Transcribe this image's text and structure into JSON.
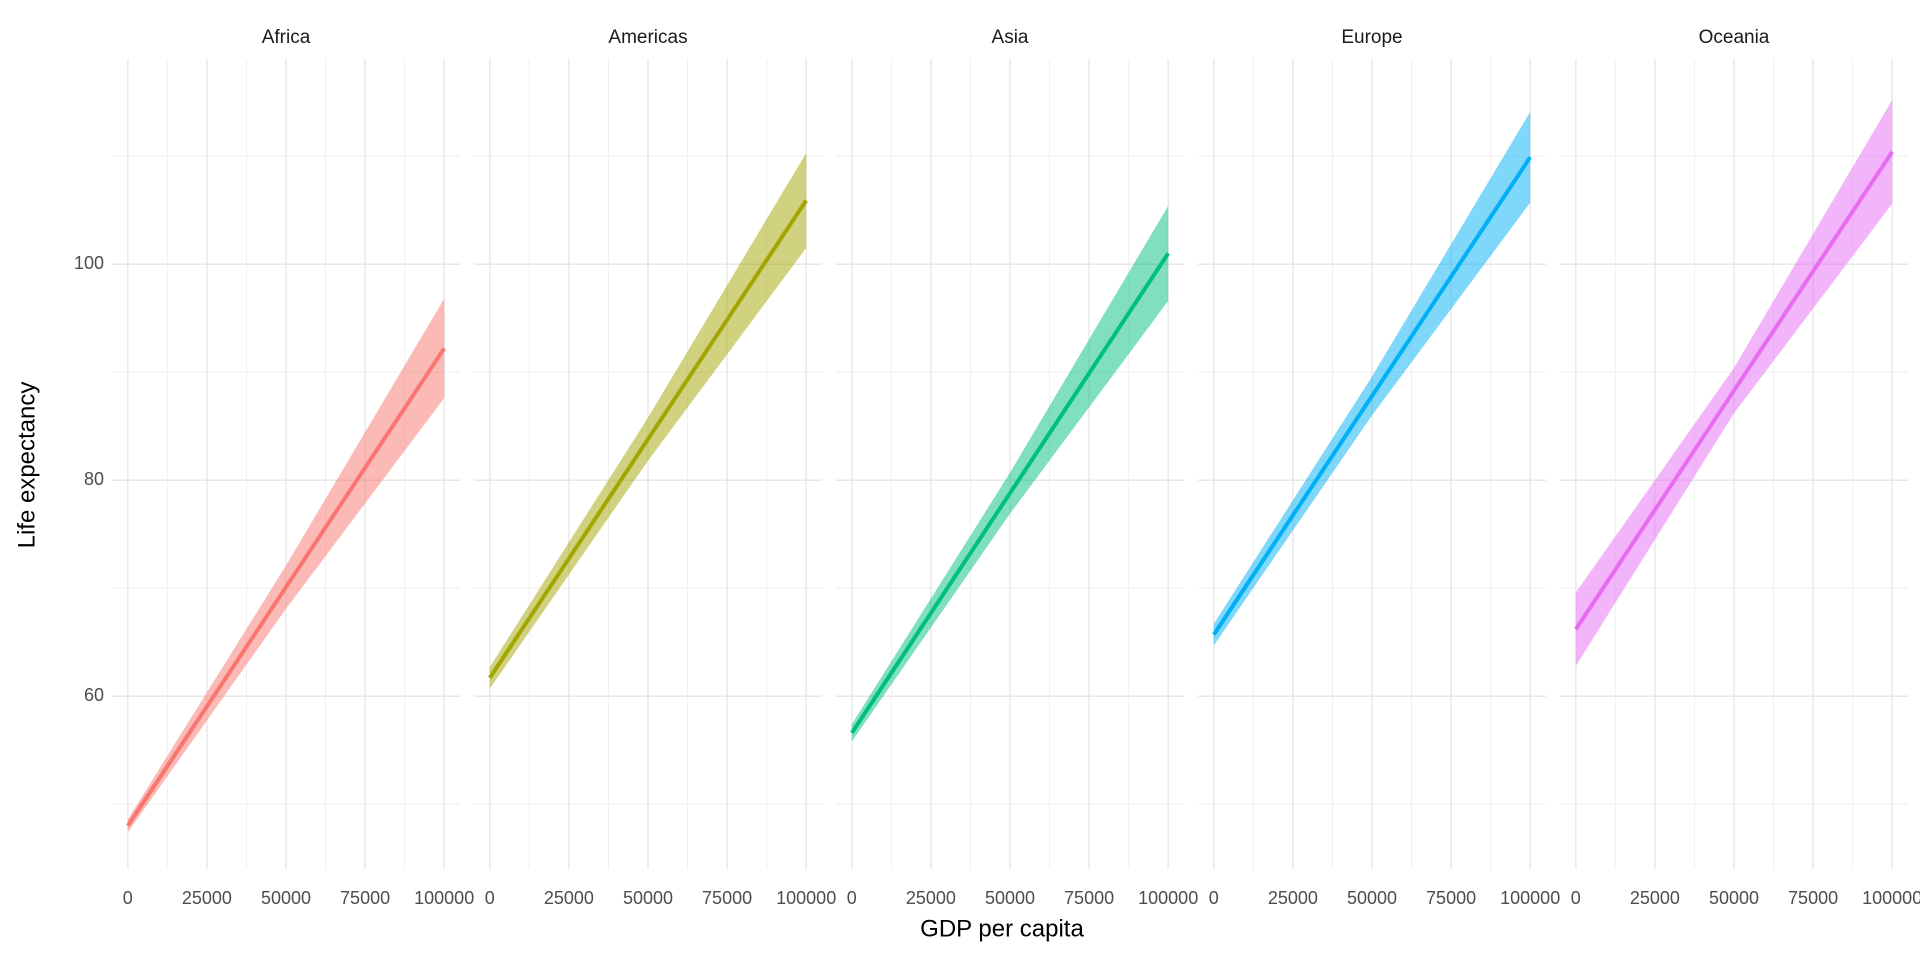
{
  "chart_data": {
    "type": "line",
    "xlabel": "GDP per capita",
    "ylabel": "Life expectancy",
    "xlim": [
      -5000,
      105000
    ],
    "ylim": [
      44,
      119
    ],
    "xticks": [
      0,
      25000,
      50000,
      75000,
      100000
    ],
    "yticks": [
      60,
      80,
      100
    ],
    "xminor": [
      12500,
      37500,
      62500,
      87500
    ],
    "yminor": [
      50,
      70,
      90,
      110
    ],
    "grid": true,
    "panels": [
      {
        "title": "Africa",
        "color": "#F8766D",
        "x": [
          0,
          50000,
          100000
        ],
        "values": [
          48.0,
          70.1,
          92.2
        ],
        "lower": [
          47.4,
          68.1,
          87.6
        ],
        "upper": [
          48.6,
          72.1,
          96.8
        ]
      },
      {
        "title": "Americas",
        "color": "#A3A500",
        "x": [
          0,
          50000,
          100000
        ],
        "values": [
          61.7,
          83.8,
          105.9
        ],
        "lower": [
          60.7,
          81.8,
          101.5
        ],
        "upper": [
          62.7,
          85.8,
          110.3
        ]
      },
      {
        "title": "Asia",
        "color": "#00BF7D",
        "x": [
          0,
          50000,
          100000
        ],
        "values": [
          56.6,
          78.8,
          101.0
        ],
        "lower": [
          55.8,
          76.9,
          96.6
        ],
        "upper": [
          57.4,
          80.7,
          105.4
        ]
      },
      {
        "title": "Europe",
        "color": "#00B0F6",
        "x": [
          0,
          50000,
          100000
        ],
        "values": [
          65.7,
          87.8,
          109.9
        ],
        "lower": [
          64.7,
          86.0,
          105.7
        ],
        "upper": [
          66.7,
          89.6,
          114.1
        ]
      },
      {
        "title": "Oceania",
        "color": "#E76BF3",
        "x": [
          0,
          50000,
          100000
        ],
        "values": [
          66.2,
          88.3,
          110.4
        ],
        "lower": [
          62.8,
          86.2,
          105.6
        ],
        "upper": [
          69.6,
          90.4,
          115.2
        ]
      }
    ]
  }
}
